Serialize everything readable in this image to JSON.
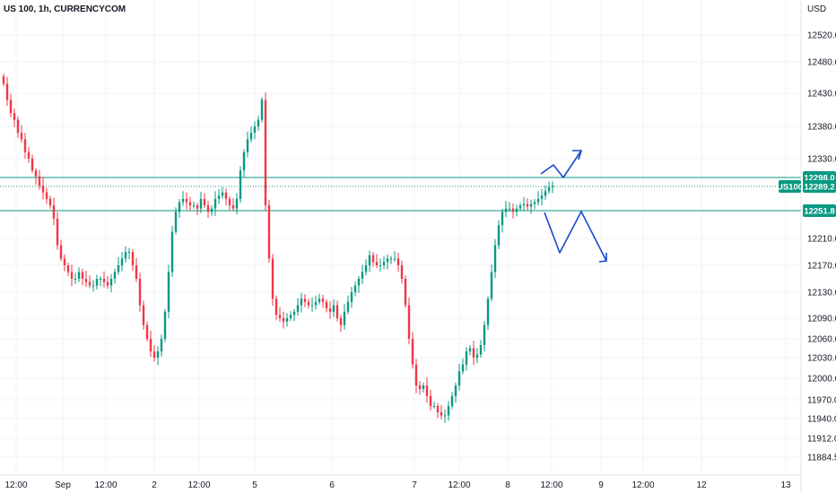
{
  "header": {
    "title": "US 100, 1h, CURRENCYCOM"
  },
  "chart_data": {
    "type": "candlestick",
    "title": "US 100, 1h, CURRENCYCOM",
    "currency": "USD",
    "grid": true,
    "y_ticks": [
      "12520.0",
      "12480.0",
      "12430.0",
      "12380.0",
      "12330.0",
      "12210.0",
      "12170.0",
      "12130.0",
      "12090.0",
      "12060.0",
      "12030.0",
      "12000.0",
      "11970.0",
      "11940.0",
      "11912.0",
      "11884.5"
    ],
    "x_ticks": [
      "12:00",
      "Sep",
      "12:00",
      "2",
      "12:00",
      "5",
      "6",
      "7",
      "12:00",
      "8",
      "12:00",
      "9",
      "12:00",
      "12",
      "13"
    ],
    "price_lines": [
      {
        "label": "12298.0",
        "value": 12298.0,
        "color": "#089981"
      },
      {
        "label": "12251.8",
        "value": 12251.8,
        "color": "#089981"
      }
    ],
    "last_price": {
      "symbol": "US100",
      "label": "12289.2",
      "value": 12289.2,
      "color": "#089981"
    },
    "up_color": "#089981",
    "down_color": "#f23645",
    "drawing_color": "#1848cc",
    "candles_close": [
      12445,
      12420,
      12400,
      12390,
      12370,
      12360,
      12340,
      12330,
      12310,
      12300,
      12290,
      12280,
      12270,
      12260,
      12240,
      12200,
      12180,
      12170,
      12160,
      12150,
      12150,
      12160,
      12150,
      12145,
      12140,
      12140,
      12150,
      12150,
      12145,
      12140,
      12150,
      12160,
      12170,
      12180,
      12190,
      12190,
      12170,
      12150,
      12110,
      12080,
      12060,
      12040,
      12030,
      12040,
      12060,
      12100,
      12160,
      12220,
      12250,
      12265,
      12270,
      12265,
      12260,
      12260,
      12255,
      12270,
      12260,
      12250,
      12255,
      12270,
      12275,
      12280,
      12270,
      12260,
      12255,
      12270,
      12310,
      12340,
      12360,
      12370,
      12380,
      12390,
      12420,
      12260,
      12180,
      12120,
      12095,
      12090,
      12085,
      12090,
      12095,
      12100,
      12110,
      12120,
      12115,
      12110,
      12110,
      12115,
      12120,
      12115,
      12105,
      12100,
      12110,
      12090,
      12080,
      12100,
      12115,
      12130,
      12140,
      12150,
      12160,
      12170,
      12185,
      12175,
      12170,
      12170,
      12175,
      12180,
      12180,
      12180,
      12170,
      12150,
      12110,
      12060,
      12020,
      11990,
      11985,
      11990,
      11975,
      11960,
      11960,
      11950,
      11945,
      11945,
      11960,
      11975,
      11990,
      12010,
      12020,
      12040,
      12045,
      12030,
      12035,
      12050,
      12080,
      12120,
      12160,
      12200,
      12230,
      12250,
      12255,
      12255,
      12250,
      12255,
      12260,
      12262,
      12258,
      12262,
      12265,
      12270,
      12275,
      12282,
      12288,
      12290
    ]
  }
}
